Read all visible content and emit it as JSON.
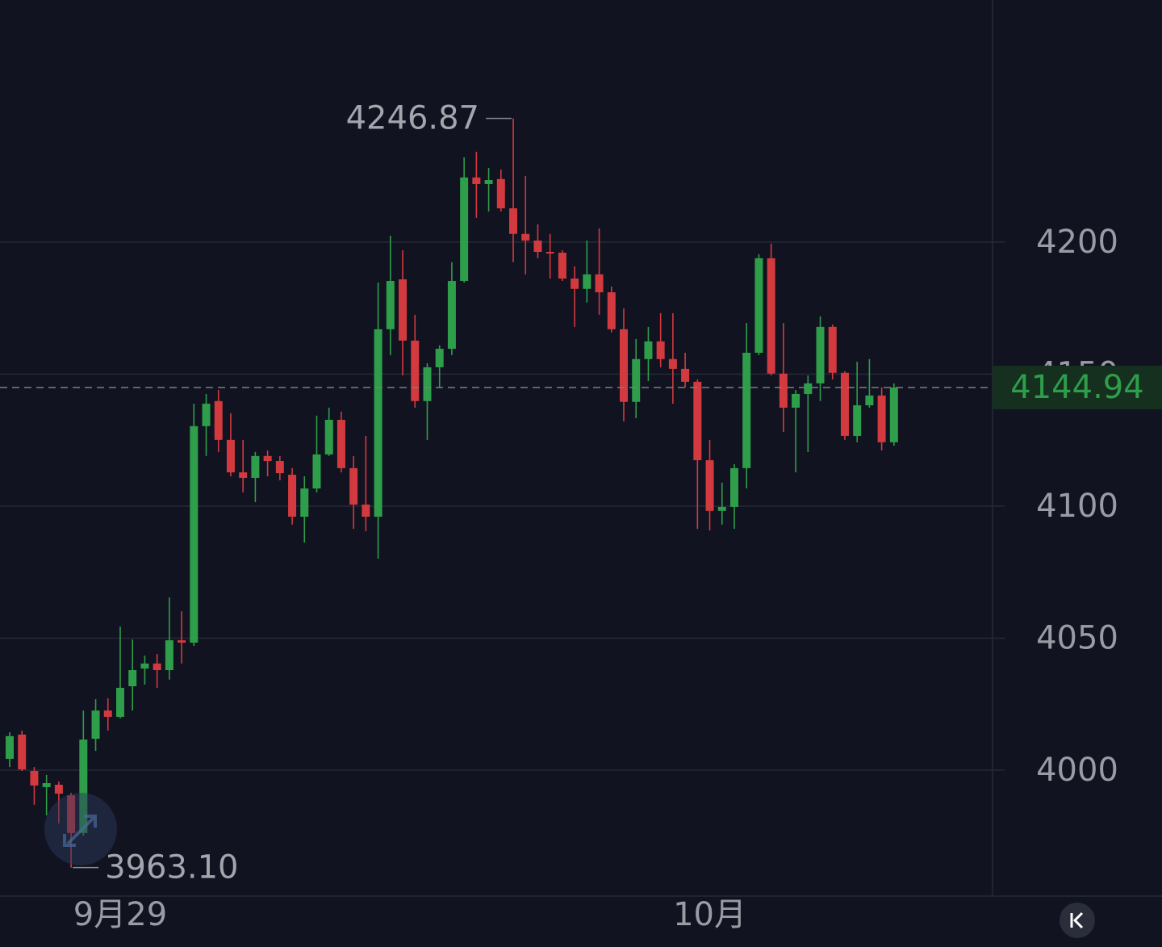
{
  "chart_data": {
    "type": "candlestick",
    "up_color": "#2e9e4a",
    "down_color": "#d23a3f",
    "ylim": [
      3952.3,
      4291.7
    ],
    "yticks": [
      4000,
      4050,
      4100,
      4150,
      4200
    ],
    "grid": true,
    "categories": [
      null,
      null,
      null,
      null,
      null,
      null,
      null,
      null,
      null,
      "9月29",
      null,
      null,
      null,
      null,
      null,
      null,
      null,
      null,
      null,
      null,
      null,
      null,
      null,
      null,
      null,
      null,
      null,
      null,
      null,
      null,
      null,
      null,
      null,
      null,
      null,
      null,
      null,
      null,
      null,
      null,
      null,
      null,
      null,
      null,
      null,
      null,
      null,
      null,
      null,
      null,
      null,
      null,
      null,
      null,
      null,
      null,
      null,
      "10月",
      null,
      null,
      null,
      null,
      null,
      null,
      null,
      null,
      null,
      null,
      null,
      null,
      null,
      null,
      null
    ],
    "open": [
      4004.3,
      4013.5,
      3999.7,
      3993.6,
      3994.5,
      3990.5,
      3976.2,
      4011.9,
      4022.6,
      4020.2,
      4031.8,
      4038.5,
      4040.4,
      4037.9,
      4049.2,
      4048.3,
      4130.3,
      4139.8,
      4125.1,
      4112.8,
      4110.7,
      4119.0,
      4117.1,
      4111.9,
      4096.0,
      4106.7,
      4119.6,
      4132.7,
      4114.4,
      4100.6,
      4096.0,
      4167.0,
      4185.9,
      4162.7,
      4139.8,
      4152.6,
      4159.6,
      4185.3,
      4224.5,
      4222.0,
      4223.9,
      4212.8,
      4203.1,
      4200.6,
      4196.3,
      4196.0,
      4186.2,
      4182.3,
      4187.8,
      4181.0,
      4167.0,
      4139.5,
      4155.7,
      4162.4,
      4155.7,
      4152.0,
      4147.1,
      4117.4,
      4098.2,
      4099.7,
      4114.4,
      4158.1,
      4193.9,
      4150.2,
      4137.3,
      4142.5,
      4146.5,
      4167.9,
      4150.5,
      4126.6,
      4138.2,
      4141.9,
      4124.2
    ],
    "high": [
      4014.4,
      4015.0,
      4001.2,
      3998.2,
      3995.7,
      3991.4,
      4022.6,
      4026.9,
      4027.2,
      4054.4,
      4049.5,
      4043.4,
      4044.0,
      4065.4,
      4060.2,
      4138.8,
      4142.5,
      4144.0,
      4135.2,
      4125.1,
      4120.5,
      4121.1,
      4119.0,
      4114.4,
      4111.3,
      4134.3,
      4137.3,
      4135.8,
      4119.0,
      4126.6,
      4184.7,
      4202.4,
      4196.9,
      4172.5,
      4154.1,
      4160.9,
      4192.4,
      4232.1,
      4234.2,
      4228.1,
      4227.5,
      4246.87,
      4225.1,
      4206.7,
      4203.1,
      4196.9,
      4190.8,
      4200.6,
      4205.2,
      4183.2,
      4174.9,
      4163.3,
      4167.9,
      4173.1,
      4173.1,
      4158.1,
      4148.0,
      4125.1,
      4108.9,
      4115.9,
      4169.4,
      4195.4,
      4199.4,
      4169.4,
      4144.0,
      4149.5,
      4171.9,
      4168.8,
      4151.1,
      4154.7,
      4155.7,
      4145.0,
      4146.5
    ],
    "low": [
      4001.2,
      3999.7,
      3986.9,
      3982.9,
      3979.8,
      3963.1,
      3975.2,
      4007.3,
      4015.0,
      4019.6,
      4022.6,
      4032.4,
      4031.2,
      4034.3,
      4040.4,
      4047.1,
      4119.0,
      4120.5,
      4111.3,
      4105.2,
      4101.5,
      4111.3,
      4109.8,
      4093.0,
      4086.2,
      4105.2,
      4119.0,
      4112.8,
      4091.4,
      4090.5,
      4080.1,
      4157.2,
      4149.5,
      4137.3,
      4125.1,
      4145.0,
      4157.2,
      4184.7,
      4209.2,
      4211.6,
      4211.6,
      4192.4,
      4187.8,
      4193.9,
      4186.2,
      4185.3,
      4167.9,
      4177.1,
      4172.5,
      4165.8,
      4132.1,
      4133.3,
      4147.4,
      4152.6,
      4138.8,
      4145.0,
      4091.4,
      4090.8,
      4093.0,
      4091.4,
      4106.7,
      4157.2,
      4149.5,
      4128.1,
      4112.8,
      4120.5,
      4139.8,
      4148.0,
      4125.1,
      4124.2,
      4137.3,
      4121.1,
      4122.9
    ],
    "close": [
      4012.9,
      4000.3,
      3994.2,
      3995.1,
      3991.1,
      3976.2,
      4011.6,
      4022.6,
      4020.2,
      4031.2,
      4037.9,
      4040.4,
      4037.9,
      4049.2,
      4048.3,
      4130.3,
      4138.8,
      4125.1,
      4112.8,
      4110.7,
      4119.0,
      4117.1,
      4112.5,
      4096.0,
      4106.7,
      4119.6,
      4132.7,
      4114.4,
      4100.6,
      4096.0,
      4167.0,
      4185.3,
      4162.7,
      4139.8,
      4152.6,
      4159.6,
      4185.3,
      4224.5,
      4222.0,
      4223.5,
      4212.8,
      4203.1,
      4200.6,
      4196.3,
      4195.9,
      4186.2,
      4182.3,
      4187.8,
      4181.0,
      4167.0,
      4139.5,
      4155.7,
      4162.4,
      4155.7,
      4152.0,
      4147.1,
      4117.4,
      4098.2,
      4099.7,
      4114.4,
      4158.1,
      4193.9,
      4150.2,
      4137.3,
      4142.5,
      4146.5,
      4167.9,
      4150.5,
      4126.6,
      4138.2,
      4141.9,
      4124.2,
      4144.94
    ],
    "annotations": [
      {
        "value": 4246.87,
        "label": "4246.87"
      },
      {
        "value": 3963.1,
        "label": "3963.10"
      }
    ],
    "last_price": {
      "value": 4144.94,
      "label": "4144.94"
    }
  }
}
